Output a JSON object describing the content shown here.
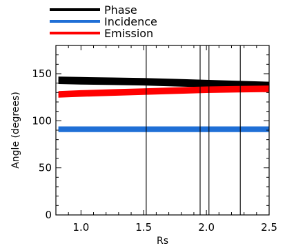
{
  "chart_data": {
    "type": "line",
    "xlabel": "Rs",
    "ylabel": "Angle (degrees)",
    "xlim": [
      0.8,
      2.5
    ],
    "ylim": [
      0,
      180
    ],
    "x_ticks": [
      "1.0",
      "1.5",
      "2.0",
      "2.5"
    ],
    "y_ticks": [
      "0",
      "50",
      "100",
      "150"
    ],
    "x_tick_values": [
      1.0,
      1.5,
      2.0,
      2.5
    ],
    "y_tick_values": [
      0,
      50,
      100,
      150
    ],
    "grid": false,
    "legend_position": "top",
    "vertical_lines_x": [
      1.52,
      1.95,
      2.02,
      2.27
    ],
    "series": [
      {
        "name": "Phase",
        "color": "#000000",
        "x": [
          0.82,
          1.0,
          1.25,
          1.5,
          1.75,
          2.0,
          2.25,
          2.5
        ],
        "y": [
          143,
          142.5,
          142,
          141.5,
          140.5,
          139.5,
          138.5,
          137.5
        ],
        "spread": 4
      },
      {
        "name": "Incidence",
        "color": "#1f6fd6",
        "x": [
          0.82,
          1.0,
          1.25,
          1.5,
          1.75,
          2.0,
          2.25,
          2.5
        ],
        "y": [
          91,
          91,
          91,
          91,
          91,
          91,
          91,
          91
        ],
        "spread": 3
      },
      {
        "name": "Emission",
        "color": "#ff0000",
        "x": [
          0.82,
          1.0,
          1.25,
          1.5,
          1.75,
          2.0,
          2.25,
          2.5
        ],
        "y": [
          128,
          129,
          130,
          131,
          132,
          133,
          133.5,
          134
        ],
        "spread": 3.5
      }
    ]
  }
}
